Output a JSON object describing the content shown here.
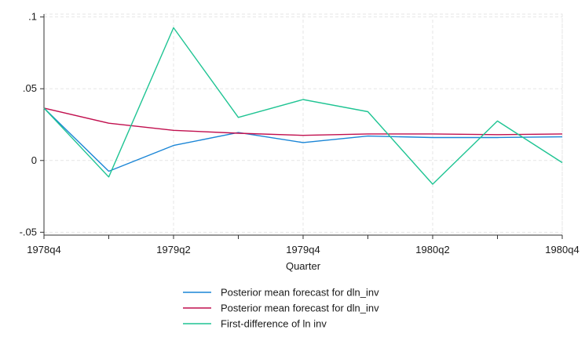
{
  "chart_data": {
    "type": "line",
    "title": "",
    "xlabel": "Quarter",
    "ylabel": "",
    "x": [
      "1978q4",
      "1979q1",
      "1979q2",
      "1979q3",
      "1979q4",
      "1980q1",
      "1980q2",
      "1980q3",
      "1980q4"
    ],
    "x_tick_labels": [
      "1978q4",
      "1979q2",
      "1979q4",
      "1980q2",
      "1980q4"
    ],
    "y_ticks": [
      -0.05,
      0,
      0.05,
      0.1
    ],
    "y_tick_labels": [
      "-.05",
      "0",
      ".05",
      ".1"
    ],
    "ylim": [
      -0.052,
      0.102
    ],
    "grid": true,
    "legend_position": "bottom",
    "series": [
      {
        "name": "Posterior mean forecast for dln_inv",
        "color": "#1a85d6",
        "values": [
          0.0365,
          -0.0075,
          0.0105,
          0.0195,
          0.0125,
          0.017,
          0.016,
          0.016,
          0.0165
        ]
      },
      {
        "name": "Posterior mean forecast for dln_inv",
        "color": "#c10f4e",
        "values": [
          0.0365,
          0.026,
          0.021,
          0.019,
          0.0175,
          0.0185,
          0.0185,
          0.018,
          0.0185
        ]
      },
      {
        "name": "First-difference of ln  inv",
        "color": "#1fc493",
        "values": [
          0.0365,
          -0.0115,
          0.0925,
          0.03,
          0.0425,
          0.034,
          -0.0165,
          0.0275,
          -0.0015
        ]
      }
    ]
  }
}
